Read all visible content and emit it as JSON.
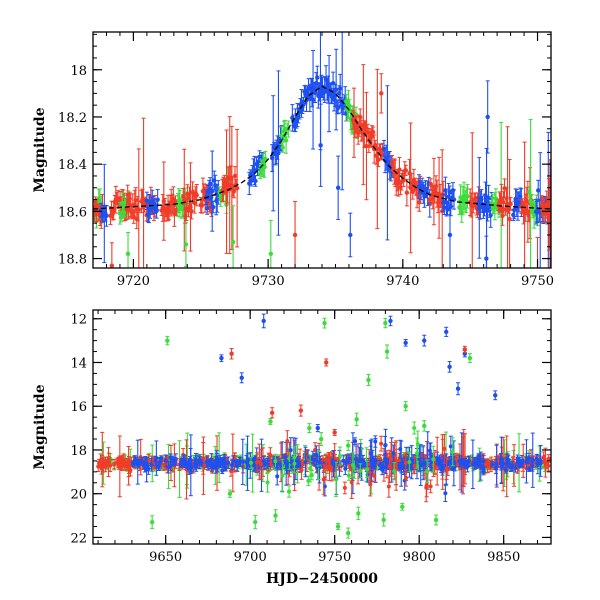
{
  "chart_data": [
    {
      "type": "scatter",
      "panel": "top",
      "title": "",
      "xlabel": "",
      "ylabel": "Magnitude",
      "xlim": [
        9717,
        9751
      ],
      "ylim": [
        18.84,
        17.84
      ],
      "y_inverted": true,
      "xticks": [
        9720,
        9730,
        9740,
        9750
      ],
      "yticks": [
        18,
        18.2,
        18.4,
        18.6,
        18.8
      ],
      "yticklabels": [
        "18",
        "18.2",
        "18.4",
        "18.6",
        "18.8"
      ],
      "model_curve": {
        "name": "model",
        "color": "#000000",
        "style": "dashed",
        "x": [
          9717,
          9720,
          9723,
          9725,
          9727,
          9728,
          9729,
          9730,
          9731,
          9732,
          9733,
          9734,
          9735,
          9736,
          9737,
          9738,
          9739,
          9740,
          9741,
          9742,
          9744,
          9746,
          9748,
          9751
        ],
        "y": [
          18.59,
          18.58,
          18.57,
          18.55,
          18.51,
          18.48,
          18.44,
          18.38,
          18.3,
          18.2,
          18.11,
          18.07,
          18.1,
          18.17,
          18.26,
          18.34,
          18.41,
          18.46,
          18.5,
          18.53,
          18.56,
          18.57,
          18.58,
          18.59
        ]
      },
      "series": [
        {
          "name": "red",
          "color": "#f03c28"
        },
        {
          "name": "blue",
          "color": "#1e50f0"
        },
        {
          "name": "green",
          "color": "#3cdc3c"
        }
      ]
    },
    {
      "type": "scatter",
      "panel": "bottom",
      "title": "",
      "xlabel": "HJD−2450000",
      "ylabel": "Magnitude",
      "xlim": [
        9607,
        9878
      ],
      "ylim": [
        22.3,
        11.6
      ],
      "y_inverted": true,
      "xticks": [
        9650,
        9700,
        9750,
        9800,
        9850
      ],
      "yticks": [
        12,
        14,
        16,
        18,
        20,
        22
      ],
      "yticklabels": [
        "12",
        "14",
        "16",
        "18",
        "20",
        "22"
      ],
      "baseline_magnitude": 18.6,
      "series": [
        {
          "name": "red",
          "color": "#f03c28"
        },
        {
          "name": "blue",
          "color": "#1e50f0"
        },
        {
          "name": "green",
          "color": "#3cdc3c"
        }
      ],
      "outliers": [
        {
          "series": "green",
          "x": 9651,
          "y": 13.0
        },
        {
          "series": "green",
          "x": 9744,
          "y": 12.2
        },
        {
          "series": "green",
          "x": 9780,
          "y": 12.2
        },
        {
          "series": "green",
          "x": 9781,
          "y": 13.5
        },
        {
          "series": "green",
          "x": 9830,
          "y": 13.8
        },
        {
          "series": "green",
          "x": 9642,
          "y": 21.3
        },
        {
          "series": "green",
          "x": 9703,
          "y": 21.3
        },
        {
          "series": "green",
          "x": 9752,
          "y": 21.5
        },
        {
          "series": "green",
          "x": 9758,
          "y": 21.8
        },
        {
          "series": "green",
          "x": 9764,
          "y": 20.9
        },
        {
          "series": "green",
          "x": 9779,
          "y": 21.2
        },
        {
          "series": "green",
          "x": 9790,
          "y": 20.6
        },
        {
          "series": "green",
          "x": 9810,
          "y": 21.2
        },
        {
          "series": "green",
          "x": 9723,
          "y": 19.9
        },
        {
          "series": "green",
          "x": 9742,
          "y": 17.5
        },
        {
          "series": "green",
          "x": 9758,
          "y": 17.8
        },
        {
          "series": "green",
          "x": 9763,
          "y": 16.6
        },
        {
          "series": "green",
          "x": 9770,
          "y": 14.8
        },
        {
          "series": "green",
          "x": 9792,
          "y": 16.0
        },
        {
          "series": "green",
          "x": 9803,
          "y": 16.9
        },
        {
          "series": "green",
          "x": 9712,
          "y": 16.7
        },
        {
          "series": "green",
          "x": 9735,
          "y": 17.0
        },
        {
          "series": "green",
          "x": 9688,
          "y": 20.0
        },
        {
          "series": "green",
          "x": 9715,
          "y": 21.0
        },
        {
          "series": "blue",
          "x": 9683,
          "y": 13.8
        },
        {
          "series": "blue",
          "x": 9695,
          "y": 14.7
        },
        {
          "series": "blue",
          "x": 9708,
          "y": 12.1
        },
        {
          "series": "blue",
          "x": 9783,
          "y": 12.1
        },
        {
          "series": "blue",
          "x": 9792,
          "y": 13.1
        },
        {
          "series": "blue",
          "x": 9803,
          "y": 13.0
        },
        {
          "series": "blue",
          "x": 9816,
          "y": 12.6
        },
        {
          "series": "blue",
          "x": 9818,
          "y": 14.2
        },
        {
          "series": "blue",
          "x": 9823,
          "y": 15.2
        },
        {
          "series": "blue",
          "x": 9827,
          "y": 13.6
        },
        {
          "series": "blue",
          "x": 9845,
          "y": 15.5
        },
        {
          "series": "blue",
          "x": 9740,
          "y": 17.0
        },
        {
          "series": "blue",
          "x": 9762,
          "y": 17.6
        },
        {
          "series": "blue",
          "x": 9838,
          "y": 19.0
        },
        {
          "series": "red",
          "x": 9689,
          "y": 13.6
        },
        {
          "series": "red",
          "x": 9745,
          "y": 14.0
        },
        {
          "series": "red",
          "x": 9827,
          "y": 13.4
        },
        {
          "series": "red",
          "x": 9713,
          "y": 16.3
        },
        {
          "series": "red",
          "x": 9730,
          "y": 16.2
        },
        {
          "series": "red",
          "x": 9750,
          "y": 17.2
        }
      ]
    }
  ]
}
